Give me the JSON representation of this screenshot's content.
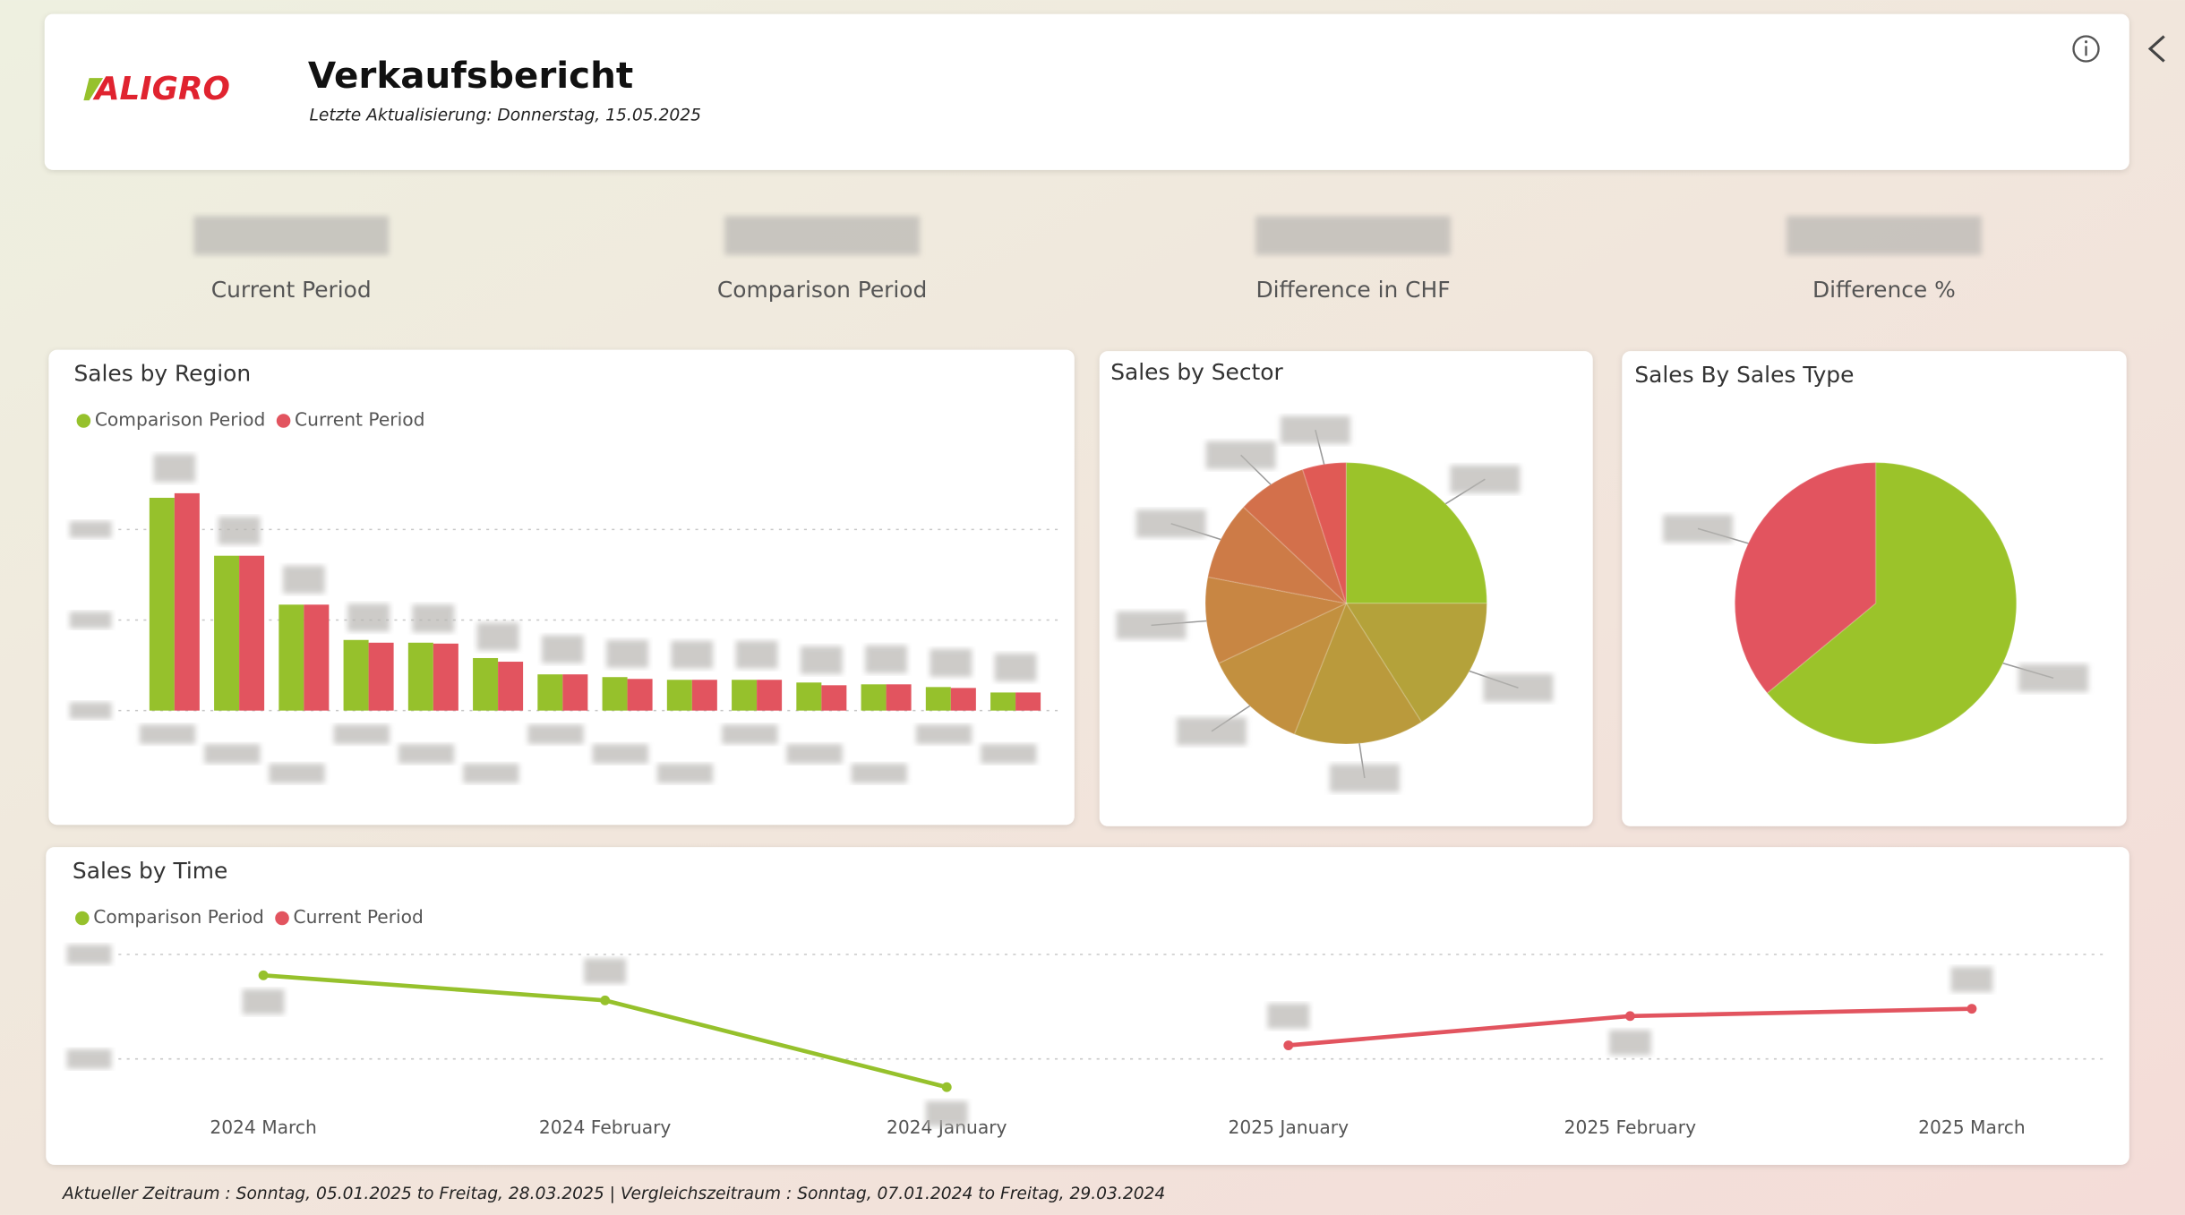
{
  "header": {
    "logo": "ALIGRO",
    "title": "Verkaufsbericht",
    "subtitle": "Letzte Aktualisierung: Donnerstag, 15.05.2025"
  },
  "kpis": [
    "Current Period",
    "Comparison Period",
    "Difference in CHF",
    "Difference %"
  ],
  "chart_data": [
    {
      "type": "bar",
      "title": "Sales by Region",
      "categories": [
        null,
        null,
        null,
        null,
        null,
        null,
        null,
        null,
        null,
        null,
        null,
        null,
        null,
        null
      ],
      "series": [
        {
          "name": "Comparison Period",
          "color": "#96c12c",
          "values": [
            2.35,
            1.71,
            1.17,
            0.78,
            0.75,
            0.58,
            0.4,
            0.37,
            0.34,
            0.34,
            0.31,
            0.29,
            0.26,
            0.2
          ]
        },
        {
          "name": "Current Period",
          "color": "#e2545f",
          "values": [
            2.4,
            1.71,
            1.17,
            0.75,
            0.74,
            0.54,
            0.4,
            0.35,
            0.34,
            0.34,
            0.28,
            0.29,
            0.25,
            0.2
          ]
        }
      ],
      "ylim": [
        0,
        2.4
      ],
      "yticks": [
        0,
        1,
        2
      ],
      "grid": true
    },
    {
      "type": "pie",
      "title": "Sales by Sector",
      "values": [
        25,
        16,
        15,
        12,
        10,
        9,
        8,
        5
      ],
      "colors": [
        "#9bc32a",
        "#b4a23a",
        "#ba9a3c",
        "#c2903f",
        "#c88643",
        "#cd7b47",
        "#d3704b",
        "#e05a55"
      ]
    },
    {
      "type": "pie",
      "title": "Sales By Sales Type",
      "values": [
        64,
        36
      ],
      "colors": [
        "#9bc32a",
        "#e2545f"
      ]
    },
    {
      "type": "line",
      "title": "Sales by Time",
      "categories": [
        "2024 March",
        "2024 February",
        "2024 January",
        "2025 January",
        "2025 February",
        "2025 March"
      ],
      "series": [
        {
          "name": "Comparison Period",
          "color": "#96c12c",
          "values": [
            1.8,
            1.56,
            0.73,
            null,
            null,
            null
          ]
        },
        {
          "name": "Current Period",
          "color": "#e2545f",
          "values": [
            null,
            null,
            null,
            1.13,
            1.41,
            1.48
          ]
        }
      ],
      "ylim": [
        0.6,
        2.2
      ],
      "yticks": [
        1,
        2
      ],
      "grid": true
    }
  ],
  "footer": "Aktueller Zeitraum : Sonntag, 05.01.2025 to Freitag, 28.03.2025 | Vergleichszeitraum : Sonntag, 07.01.2024 to Freitag, 29.03.2024"
}
